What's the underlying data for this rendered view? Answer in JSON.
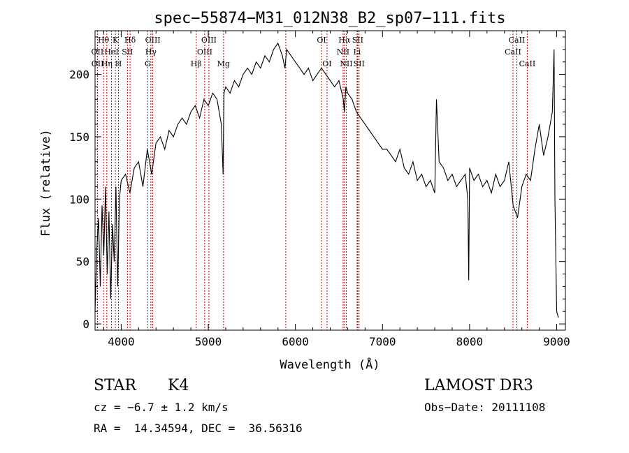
{
  "chart_data": {
    "type": "line",
    "title": "spec−55874−M31_012N38_B2_sp07−111.fits",
    "xlabel": "Wavelength (Å)",
    "ylabel": "Flux (relative)",
    "xlim": [
      3700,
      9100
    ],
    "ylim": [
      -5,
      235
    ],
    "x_ticks": [
      4000,
      5000,
      6000,
      7000,
      8000,
      9000
    ],
    "y_ticks": [
      0,
      50,
      100,
      150,
      200
    ],
    "series": [
      {
        "name": "flux",
        "x": [
          3700,
          3720,
          3740,
          3760,
          3780,
          3800,
          3820,
          3840,
          3860,
          3880,
          3900,
          3920,
          3940,
          3960,
          3980,
          4000,
          4050,
          4100,
          4150,
          4200,
          4250,
          4300,
          4350,
          4400,
          4450,
          4500,
          4550,
          4600,
          4650,
          4700,
          4750,
          4800,
          4850,
          4900,
          4950,
          5000,
          5050,
          5100,
          5150,
          5170,
          5180,
          5200,
          5250,
          5300,
          5350,
          5400,
          5450,
          5500,
          5550,
          5600,
          5650,
          5700,
          5750,
          5800,
          5850,
          5880,
          5900,
          5950,
          6000,
          6050,
          6100,
          6150,
          6200,
          6250,
          6300,
          6350,
          6400,
          6450,
          6500,
          6550,
          6563,
          6580,
          6600,
          6650,
          6700,
          6750,
          6800,
          6850,
          6900,
          6950,
          7000,
          7050,
          7100,
          7150,
          7200,
          7250,
          7300,
          7350,
          7400,
          7450,
          7500,
          7550,
          7600,
          7620,
          7650,
          7700,
          7750,
          7800,
          7850,
          7900,
          7950,
          7980,
          7990,
          8000,
          8050,
          8100,
          8150,
          8200,
          8250,
          8300,
          8350,
          8400,
          8450,
          8500,
          8550,
          8600,
          8650,
          8700,
          8750,
          8800,
          8850,
          8900,
          8950,
          8970,
          8980,
          9000,
          9020
        ],
        "y": [
          10,
          60,
          85,
          30,
          95,
          55,
          110,
          40,
          90,
          20,
          80,
          50,
          110,
          30,
          100,
          115,
          120,
          105,
          125,
          130,
          110,
          140,
          120,
          145,
          150,
          140,
          155,
          150,
          160,
          165,
          160,
          170,
          175,
          165,
          180,
          175,
          185,
          180,
          160,
          120,
          185,
          190,
          185,
          195,
          190,
          200,
          205,
          200,
          210,
          205,
          215,
          210,
          220,
          225,
          215,
          205,
          220,
          215,
          210,
          205,
          200,
          205,
          195,
          200,
          205,
          200,
          195,
          190,
          195,
          180,
          170,
          190,
          185,
          180,
          170,
          165,
          160,
          155,
          150,
          145,
          140,
          140,
          135,
          130,
          140,
          125,
          120,
          130,
          115,
          120,
          110,
          115,
          105,
          180,
          130,
          125,
          115,
          120,
          110,
          115,
          120,
          100,
          35,
          125,
          115,
          120,
          110,
          115,
          105,
          120,
          110,
          115,
          130,
          95,
          85,
          110,
          120,
          115,
          140,
          160,
          135,
          150,
          170,
          220,
          100,
          10,
          5
        ]
      }
    ],
    "lines": [
      {
        "label": "Hθ",
        "wl": 3797,
        "row": 0
      },
      {
        "label": "OII",
        "wl": 3727,
        "row": 1
      },
      {
        "label": "OII",
        "wl": 3729,
        "row": 2
      },
      {
        "label": "K",
        "wl": 3934,
        "row": 0
      },
      {
        "label": "HeI",
        "wl": 3889,
        "row": 1
      },
      {
        "label": "Hη",
        "wl": 3835,
        "row": 2
      },
      {
        "label": "H",
        "wl": 3969,
        "row": 2
      },
      {
        "label": "SII",
        "wl": 4072,
        "row": 1
      },
      {
        "label": "Hδ",
        "wl": 4102,
        "row": 0
      },
      {
        "label": "OIII",
        "wl": 4363,
        "row": 0
      },
      {
        "label": "Hγ",
        "wl": 4341,
        "row": 1
      },
      {
        "label": "G",
        "wl": 4305,
        "row": 2
      },
      {
        "label": "OIII",
        "wl": 5007,
        "row": 0
      },
      {
        "label": "OIII",
        "wl": 4959,
        "row": 1
      },
      {
        "label": "Hβ",
        "wl": 4861,
        "row": 2
      },
      {
        "label": "Mg",
        "wl": 5175,
        "row": 2
      },
      {
        "label": "OI",
        "wl": 6300,
        "row": 0
      },
      {
        "label": "OI",
        "wl": 6363,
        "row": 2
      },
      {
        "label": "Hα",
        "wl": 6563,
        "row": 0
      },
      {
        "label": "SII",
        "wl": 6716,
        "row": 0
      },
      {
        "label": "NII",
        "wl": 6548,
        "row": 1
      },
      {
        "label": "Li",
        "wl": 6708,
        "row": 1
      },
      {
        "label": "NII",
        "wl": 6584,
        "row": 2
      },
      {
        "label": "SII",
        "wl": 6731,
        "row": 2
      },
      {
        "label": "CaII",
        "wl": 8542,
        "row": 0
      },
      {
        "label": "CaII",
        "wl": 8498,
        "row": 1
      },
      {
        "label": "CaII",
        "wl": 8662,
        "row": 2
      },
      {
        "label": "",
        "wl": 5890,
        "row": 0
      }
    ]
  },
  "footer": {
    "class_label": "STAR",
    "subclass": "K4",
    "survey": "LAMOST DR3",
    "cz": "cz = −6.7 ± 1.2 km/s",
    "obs_date": "Obs−Date: 20111108",
    "coords": "RA =  14.34594, DEC =  36.56316"
  }
}
